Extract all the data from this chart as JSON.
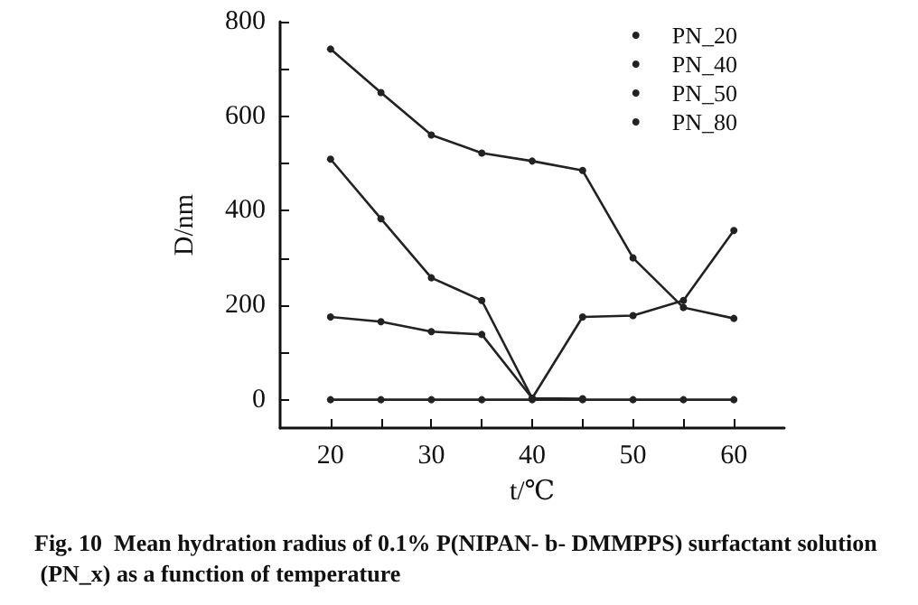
{
  "chart_data": {
    "type": "line",
    "title": "Fig. 10  Mean hydration radius of 0.1% P(NIPAN- b- DMMPPS) surfactant solution (PN_x) as a function of temperature",
    "xlabel": "t/℃",
    "ylabel": "D/nm",
    "x": [
      20,
      25,
      30,
      35,
      40,
      45,
      50,
      55,
      60
    ],
    "series": [
      {
        "name": "PN_20",
        "color": "#222222",
        "values": [
          0,
          0,
          0,
          0,
          0,
          0,
          0,
          0,
          0
        ]
      },
      {
        "name": "PN_40",
        "color": "#222222",
        "values": [
          175,
          165,
          144,
          138,
          3,
          175,
          178,
          210,
          358
        ]
      },
      {
        "name": "PN_50",
        "color": "#222222",
        "values": [
          509,
          383,
          258,
          210,
          3,
          2,
          null,
          null,
          null
        ]
      },
      {
        "name": "PN_80",
        "color": "#222222",
        "values": [
          742,
          650,
          560,
          522,
          505,
          485,
          300,
          195,
          172
        ]
      }
    ],
    "xlim": [
      15,
      65
    ],
    "xticks": [
      20,
      {
        "value": 25,
        "label": null
      },
      30,
      {
        "value": 35,
        "label": null
      },
      40,
      {
        "value": 45,
        "label": null
      },
      50,
      {
        "value": 55,
        "label": null
      },
      60
    ],
    "ylim": [
      -60,
      800
    ],
    "yticks": [
      0,
      {
        "value": 100,
        "label": null
      },
      200,
      {
        "value": 300,
        "label": null
      },
      400,
      {
        "value": 500,
        "label": null
      },
      600,
      {
        "value": 700,
        "label": null
      },
      800
    ],
    "grid": false,
    "legend": "top right",
    "marker": "circle",
    "line_style": "solid"
  }
}
